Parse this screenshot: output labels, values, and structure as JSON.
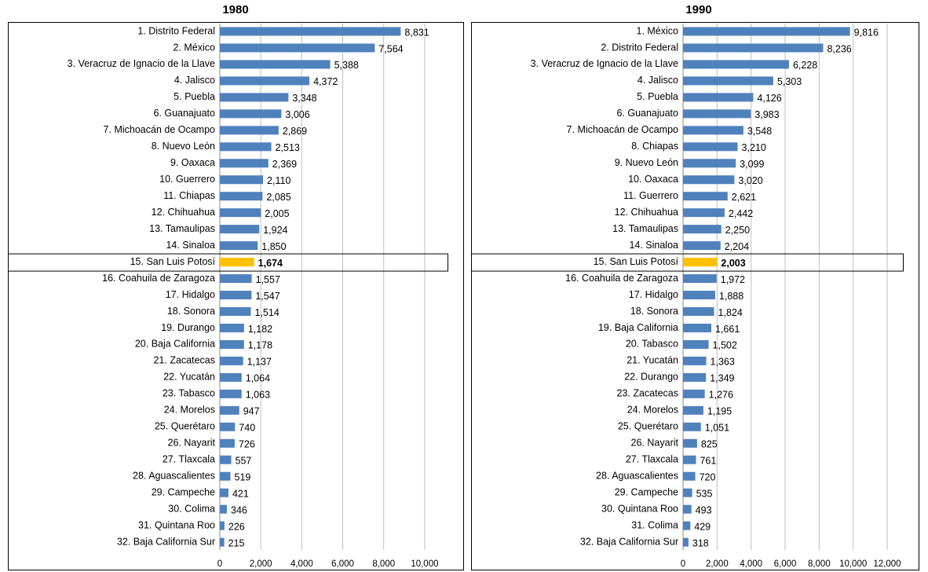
{
  "chart_data": [
    {
      "type": "bar",
      "orientation": "horizontal",
      "title": "1980",
      "categories": [
        "1. Distrito Federal",
        "2. México",
        "3. Veracruz de Ignacio de la Llave",
        "4. Jalisco",
        "5. Puebla",
        "6. Guanajuato",
        "7. Michoacán de Ocampo",
        "8. Nuevo León",
        "9. Oaxaca",
        "10. Guerrero",
        "11. Chiapas",
        "12. Chihuahua",
        "13. Tamaulipas",
        "14. Sinaloa",
        "15. San Luis Potosí",
        "16. Coahuila de Zaragoza",
        "17. Hidalgo",
        "18. Sonora",
        "19. Durango",
        "20. Baja California",
        "21. Zacatecas",
        "22. Yucatán",
        "23. Tabasco",
        "24. Morelos",
        "25. Querétaro",
        "26. Nayarit",
        "27. Tlaxcala",
        "28. Aguascalientes",
        "29. Campeche",
        "30. Colima",
        "31. Quintana Roo",
        "32. Baja California Sur"
      ],
      "values": [
        8831,
        7564,
        5388,
        4372,
        3348,
        3006,
        2869,
        2513,
        2369,
        2110,
        2085,
        2005,
        1924,
        1850,
        1674,
        1557,
        1547,
        1514,
        1182,
        1178,
        1137,
        1064,
        1063,
        947,
        740,
        726,
        557,
        519,
        421,
        346,
        226,
        215
      ],
      "value_labels": [
        "8,831",
        "7,564",
        "5,388",
        "4,372",
        "3,348",
        "3,006",
        "2,869",
        "2,513",
        "2,369",
        "2,110",
        "2,085",
        "2,005",
        "1,924",
        "1,850",
        "1,674",
        "1,557",
        "1,547",
        "1,514",
        "1,182",
        "1,178",
        "1,137",
        "1,064",
        "1,063",
        "947",
        "740",
        "726",
        "557",
        "519",
        "421",
        "346",
        "226",
        "215"
      ],
      "color": "#4f81bd",
      "colors": [
        "#4f81bd",
        "#4f81bd",
        "#4f81bd",
        "#4f81bd",
        "#4f81bd",
        "#4f81bd",
        "#4f81bd",
        "#4f81bd",
        "#4f81bd",
        "#4f81bd",
        "#4f81bd",
        "#4f81bd",
        "#4f81bd",
        "#4f81bd",
        "#ffc000",
        "#4f81bd",
        "#4f81bd",
        "#4f81bd",
        "#4f81bd",
        "#4f81bd",
        "#4f81bd",
        "#4f81bd",
        "#4f81bd",
        "#4f81bd",
        "#4f81bd",
        "#4f81bd",
        "#4f81bd",
        "#4f81bd",
        "#4f81bd",
        "#4f81bd",
        "#4f81bd",
        "#4f81bd"
      ],
      "xlim": [
        0,
        11000
      ],
      "xticks": [
        0,
        {
          "value": 2000,
          "label": "2,000"
        },
        {
          "value": 4000,
          "label": "4,000"
        },
        {
          "value": 6000,
          "label": "6,000"
        },
        {
          "value": 8000,
          "label": "8,000"
        },
        {
          "value": 10000,
          "label": "10,000"
        }
      ],
      "grid": true
    },
    {
      "type": "bar",
      "orientation": "horizontal",
      "title": "1990",
      "categories": [
        "1. México",
        "2. Distrito Federal",
        "3. Veracruz de Ignacio de la Llave",
        "4. Jalisco",
        "5. Puebla",
        "6. Guanajuato",
        "7. Michoacán de Ocampo",
        "8. Chiapas",
        "9. Nuevo León",
        "10. Oaxaca",
        "11. Guerrero",
        "12. Chihuahua",
        "13. Tamaulipas",
        "14. Sinaloa",
        "15. San Luis Potosí",
        "16. Coahuila de Zaragoza",
        "17. Hidalgo",
        "18. Sonora",
        "19. Baja California",
        "20. Tabasco",
        "21. Yucatán",
        "22. Durango",
        "23. Zacatecas",
        "24. Morelos",
        "25. Querétaro",
        "26. Nayarit",
        "27. Tlaxcala",
        "28. Aguascalientes",
        "29. Campeche",
        "30. Quintana Roo",
        "31. Colima",
        "32. Baja California Sur"
      ],
      "values": [
        9816,
        8236,
        6228,
        5303,
        4126,
        3983,
        3548,
        3210,
        3099,
        3020,
        2621,
        2442,
        2250,
        2204,
        2003,
        1972,
        1888,
        1824,
        1661,
        1502,
        1363,
        1349,
        1276,
        1195,
        1051,
        825,
        761,
        720,
        535,
        493,
        429,
        318
      ],
      "value_labels": [
        "9,816",
        "8,236",
        "6,228",
        "5,303",
        "4,126",
        "3,983",
        "3,548",
        "3,210",
        "3,099",
        "3,020",
        "2,621",
        "2,442",
        "2,250",
        "2,204",
        "2,003",
        "1,972",
        "1,888",
        "1,824",
        "1,661",
        "1,502",
        "1,363",
        "1,349",
        "1,276",
        "1,195",
        "1,051",
        "825",
        "761",
        "720",
        "535",
        "493",
        "429",
        "318"
      ],
      "color": "#4f81bd",
      "colors": [
        "#4f81bd",
        "#4f81bd",
        "#4f81bd",
        "#4f81bd",
        "#4f81bd",
        "#4f81bd",
        "#4f81bd",
        "#4f81bd",
        "#4f81bd",
        "#4f81bd",
        "#4f81bd",
        "#4f81bd",
        "#4f81bd",
        "#4f81bd",
        "#ffc000",
        "#4f81bd",
        "#4f81bd",
        "#4f81bd",
        "#4f81bd",
        "#4f81bd",
        "#4f81bd",
        "#4f81bd",
        "#4f81bd",
        "#4f81bd",
        "#4f81bd",
        "#4f81bd",
        "#4f81bd",
        "#4f81bd",
        "#4f81bd",
        "#4f81bd",
        "#4f81bd",
        "#4f81bd"
      ],
      "xlim": [
        0,
        12000
      ],
      "xticks": [
        0,
        {
          "value": 2000,
          "label": "2,000"
        },
        {
          "value": 4000,
          "label": "4,000"
        },
        {
          "value": 6000,
          "label": "6,000"
        },
        {
          "value": 8000,
          "label": "8,000"
        },
        {
          "value": 10000,
          "label": "10,000"
        },
        {
          "value": 12000,
          "label": "12,000"
        }
      ],
      "grid": true
    }
  ]
}
